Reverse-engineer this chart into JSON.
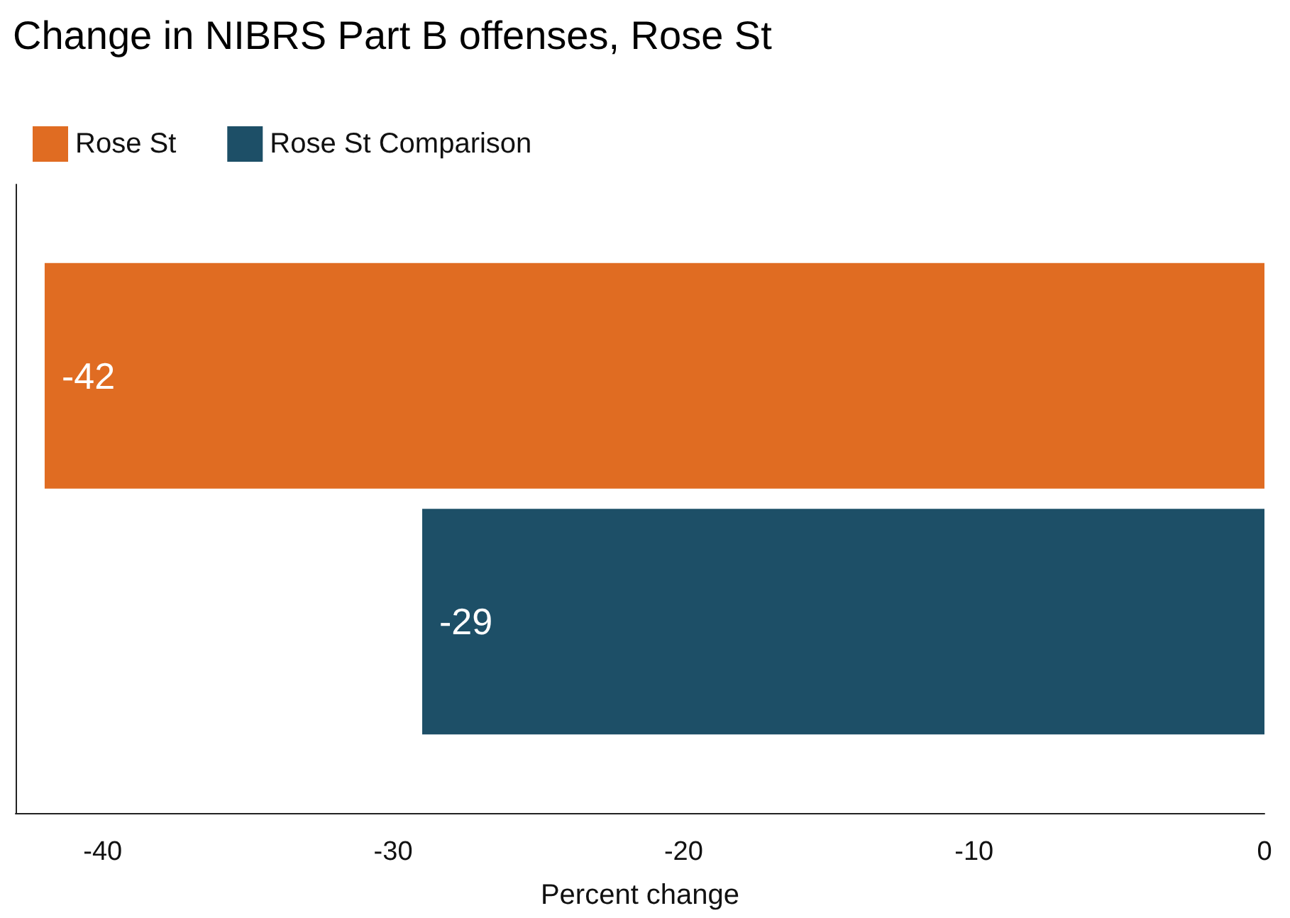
{
  "chart_data": {
    "type": "bar",
    "title": "Change in NIBRS Part B offenses, Rose St",
    "orientation": "horizontal",
    "categories": [
      null
    ],
    "series": [
      {
        "name": "Rose St",
        "color": "#e06c22",
        "values": [
          -42
        ]
      },
      {
        "name": "Rose St Comparison",
        "color": "#1d4f67",
        "values": [
          -29
        ]
      }
    ],
    "data_labels": true,
    "xlabel": "Percent change",
    "xlim": [
      -43,
      0
    ],
    "xticks": [
      -40,
      -30,
      -20,
      -10,
      0
    ],
    "grid": false,
    "legend": "top left"
  }
}
